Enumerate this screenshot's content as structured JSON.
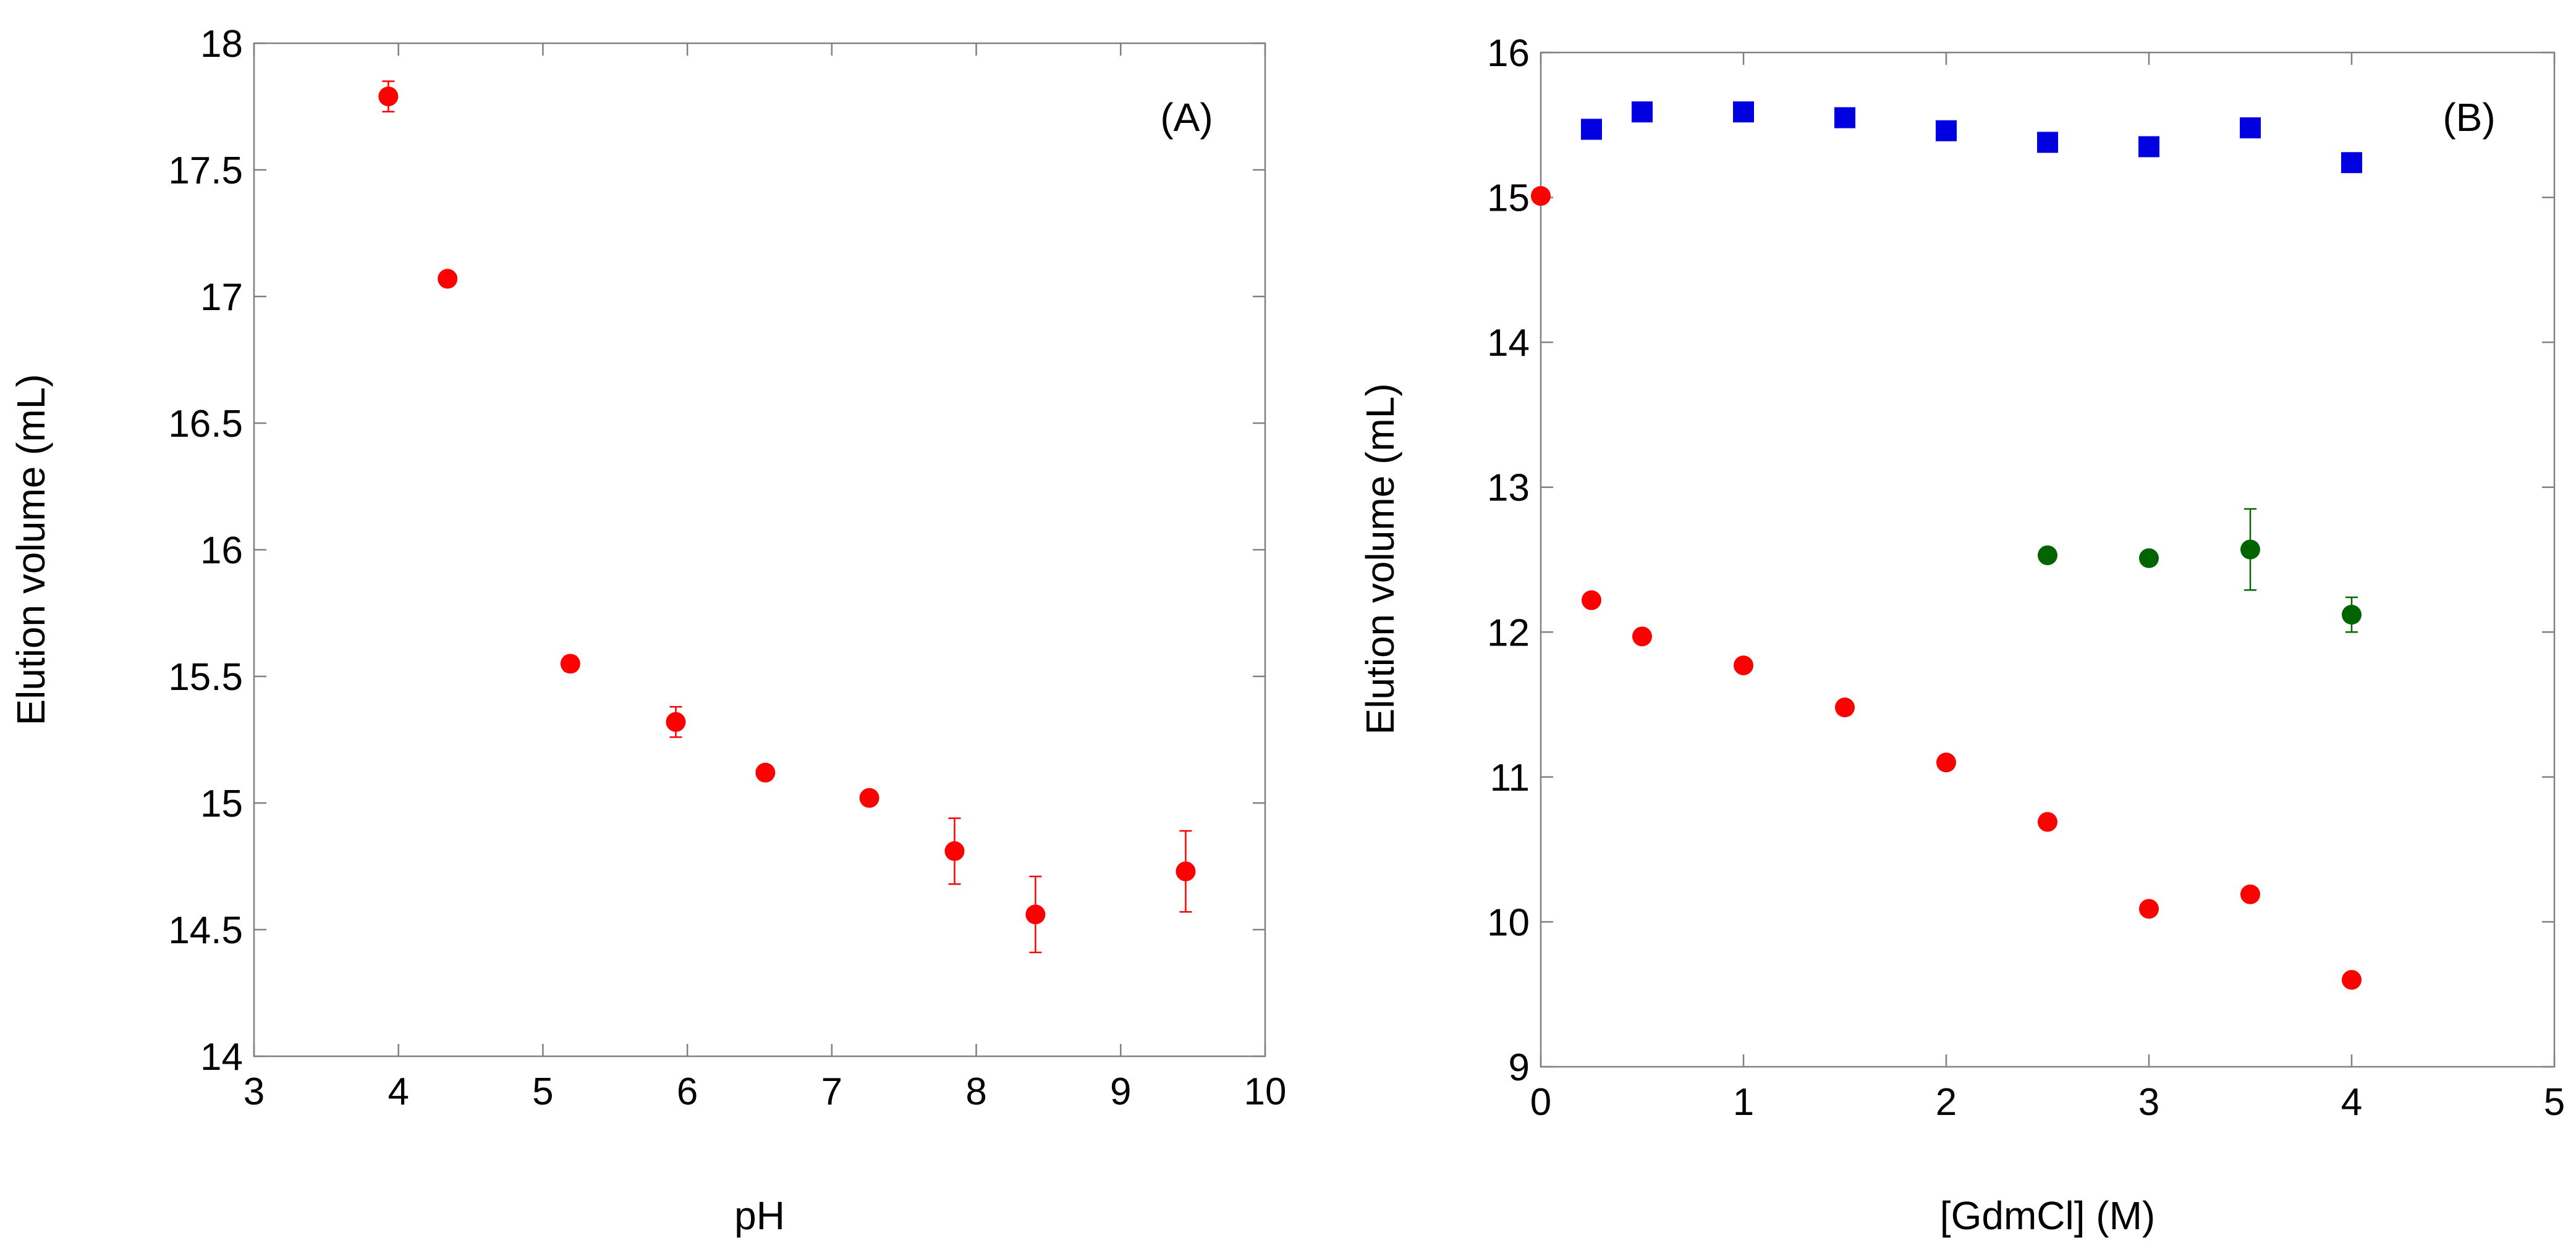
{
  "chart_data": [
    {
      "type": "scatter",
      "panel_label": "(A)",
      "xlabel": "pH",
      "ylabel": "Elution volume (mL)",
      "xlim": [
        3,
        10
      ],
      "ylim": [
        14,
        18
      ],
      "xticks": [
        3,
        4,
        5,
        6,
        7,
        8,
        9,
        10
      ],
      "yticks": [
        14,
        14.5,
        15,
        15.5,
        16,
        16.5,
        17,
        17.5,
        18
      ],
      "series": [
        {
          "name": "series-red",
          "marker": "circle",
          "color": "#ff0000",
          "x": [
            3.93,
            4.34,
            5.19,
            5.92,
            6.54,
            7.26,
            7.85,
            8.41,
            9.45
          ],
          "y": [
            17.79,
            17.07,
            15.55,
            15.32,
            15.12,
            15.02,
            14.81,
            14.56,
            14.73
          ],
          "err": [
            0.06,
            0.0,
            0.03,
            0.06,
            0.0,
            0.0,
            0.13,
            0.15,
            0.16
          ]
        }
      ]
    },
    {
      "type": "scatter",
      "panel_label": "(B)",
      "xlabel": "[GdmCl] (M)",
      "ylabel": "Elution volume (mL)",
      "xlim": [
        0,
        5
      ],
      "ylim": [
        9,
        16
      ],
      "xticks": [
        0,
        1,
        2,
        3,
        4,
        5
      ],
      "yticks": [
        9,
        10,
        11,
        12,
        13,
        14,
        15,
        16
      ],
      "series": [
        {
          "name": "series-blue",
          "marker": "square",
          "color": "#0000e0",
          "x": [
            0.25,
            0.5,
            1,
            1.5,
            2,
            2.5,
            3,
            3.5,
            4
          ],
          "y": [
            15.47,
            15.59,
            15.59,
            15.55,
            15.46,
            15.38,
            15.35,
            15.48,
            15.24
          ],
          "err": [
            0,
            0,
            0,
            0,
            0,
            0,
            0,
            0,
            0
          ]
        },
        {
          "name": "series-red",
          "marker": "circle",
          "color": "#ff0000",
          "x": [
            0,
            0.25,
            0.5,
            1,
            1.5,
            2,
            2.5,
            3,
            3.5,
            4
          ],
          "y": [
            15.01,
            12.22,
            11.97,
            11.77,
            11.48,
            11.1,
            10.69,
            10.09,
            10.19,
            9.6
          ],
          "err": [
            0,
            0,
            0,
            0,
            0,
            0,
            0,
            0,
            0,
            0
          ]
        },
        {
          "name": "series-green",
          "marker": "circle",
          "color": "#006400",
          "x": [
            2.5,
            3,
            3.5,
            4
          ],
          "y": [
            12.53,
            12.51,
            12.57,
            12.12
          ],
          "err": [
            0,
            0,
            0.28,
            0.12
          ]
        }
      ]
    }
  ]
}
